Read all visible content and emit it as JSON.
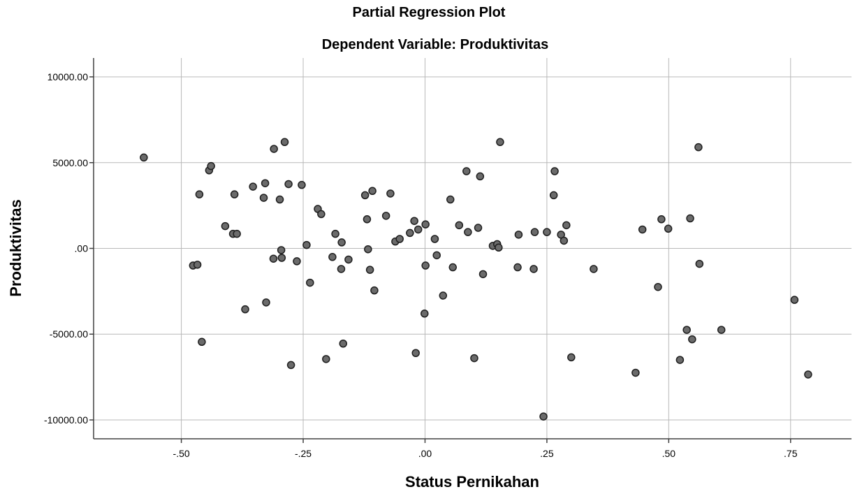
{
  "chart_data": {
    "type": "scatter",
    "title": "Partial Regression Plot",
    "subtitle": "Dependent Variable: Produktivitas",
    "xlabel": "Status Pernikahan",
    "ylabel": "Produktivitas",
    "xlim": [
      -0.68,
      0.875
    ],
    "ylim": [
      -11100,
      11100
    ],
    "x_ticks": [
      -0.5,
      -0.25,
      0.0,
      0.25,
      0.5,
      0.75
    ],
    "x_tick_labels": [
      "-.50",
      "-.25",
      ".00",
      ".25",
      ".50",
      ".75"
    ],
    "y_ticks": [
      10000,
      5000,
      0,
      -5000,
      -10000
    ],
    "y_tick_labels": [
      "10000.00",
      "5000.00",
      ".00",
      "-5000.00",
      "-10000.00"
    ],
    "grid": true,
    "marker_color": "#6b6b6b",
    "series": [
      {
        "points": [
          [
            -0.577,
            5300
          ],
          [
            -0.476,
            -1000
          ],
          [
            -0.467,
            -950
          ],
          [
            -0.463,
            3150
          ],
          [
            -0.458,
            -5450
          ],
          [
            -0.443,
            4550
          ],
          [
            -0.439,
            4800
          ],
          [
            -0.41,
            1300
          ],
          [
            -0.394,
            850
          ],
          [
            -0.391,
            3150
          ],
          [
            -0.386,
            850
          ],
          [
            -0.369,
            -3550
          ],
          [
            -0.353,
            3600
          ],
          [
            -0.331,
            2950
          ],
          [
            -0.328,
            3800
          ],
          [
            -0.326,
            -3150
          ],
          [
            -0.31,
            5800
          ],
          [
            -0.311,
            -600
          ],
          [
            -0.298,
            2850
          ],
          [
            -0.295,
            -100
          ],
          [
            -0.294,
            -550
          ],
          [
            -0.288,
            6200
          ],
          [
            -0.28,
            3750
          ],
          [
            -0.275,
            -6800
          ],
          [
            -0.263,
            -750
          ],
          [
            -0.253,
            3700
          ],
          [
            -0.243,
            200
          ],
          [
            -0.236,
            -2000
          ],
          [
            -0.22,
            2300
          ],
          [
            -0.213,
            2000
          ],
          [
            -0.203,
            -6450
          ],
          [
            -0.19,
            -500
          ],
          [
            -0.184,
            850
          ],
          [
            -0.172,
            -1200
          ],
          [
            -0.171,
            350
          ],
          [
            -0.168,
            -5550
          ],
          [
            -0.157,
            -650
          ],
          [
            -0.123,
            3100
          ],
          [
            -0.119,
            1700
          ],
          [
            -0.117,
            -50
          ],
          [
            -0.113,
            -1250
          ],
          [
            -0.108,
            3350
          ],
          [
            -0.104,
            -2450
          ],
          [
            -0.08,
            1900
          ],
          [
            -0.071,
            3200
          ],
          [
            -0.061,
            400
          ],
          [
            -0.052,
            550
          ],
          [
            -0.031,
            900
          ],
          [
            -0.022,
            1600
          ],
          [
            -0.019,
            -6100
          ],
          [
            -0.014,
            1100
          ],
          [
            -0.001,
            -3800
          ],
          [
            0.001,
            1400
          ],
          [
            0.001,
            -1000
          ],
          [
            0.02,
            550
          ],
          [
            0.024,
            -400
          ],
          [
            0.037,
            -2750
          ],
          [
            0.052,
            2850
          ],
          [
            0.057,
            -1100
          ],
          [
            0.07,
            1350
          ],
          [
            0.085,
            4500
          ],
          [
            0.088,
            950
          ],
          [
            0.101,
            -6400
          ],
          [
            0.109,
            1200
          ],
          [
            0.113,
            4200
          ],
          [
            0.119,
            -1500
          ],
          [
            0.139,
            150
          ],
          [
            0.148,
            250
          ],
          [
            0.151,
            50
          ],
          [
            0.154,
            6200
          ],
          [
            0.19,
            -1100
          ],
          [
            0.192,
            800
          ],
          [
            0.223,
            -1200
          ],
          [
            0.225,
            950
          ],
          [
            0.243,
            -9800
          ],
          [
            0.25,
            950
          ],
          [
            0.264,
            3100
          ],
          [
            0.266,
            4500
          ],
          [
            0.279,
            800
          ],
          [
            0.285,
            450
          ],
          [
            0.29,
            1350
          ],
          [
            0.3,
            -6350
          ],
          [
            0.346,
            -1200
          ],
          [
            0.432,
            -7250
          ],
          [
            0.446,
            1100
          ],
          [
            0.478,
            -2250
          ],
          [
            0.485,
            1700
          ],
          [
            0.499,
            1150
          ],
          [
            0.523,
            -6500
          ],
          [
            0.537,
            -4750
          ],
          [
            0.544,
            1750
          ],
          [
            0.548,
            -5300
          ],
          [
            0.561,
            5900
          ],
          [
            0.563,
            -900
          ],
          [
            0.608,
            -4750
          ],
          [
            0.758,
            -3000
          ],
          [
            0.786,
            -7350
          ]
        ]
      }
    ]
  }
}
